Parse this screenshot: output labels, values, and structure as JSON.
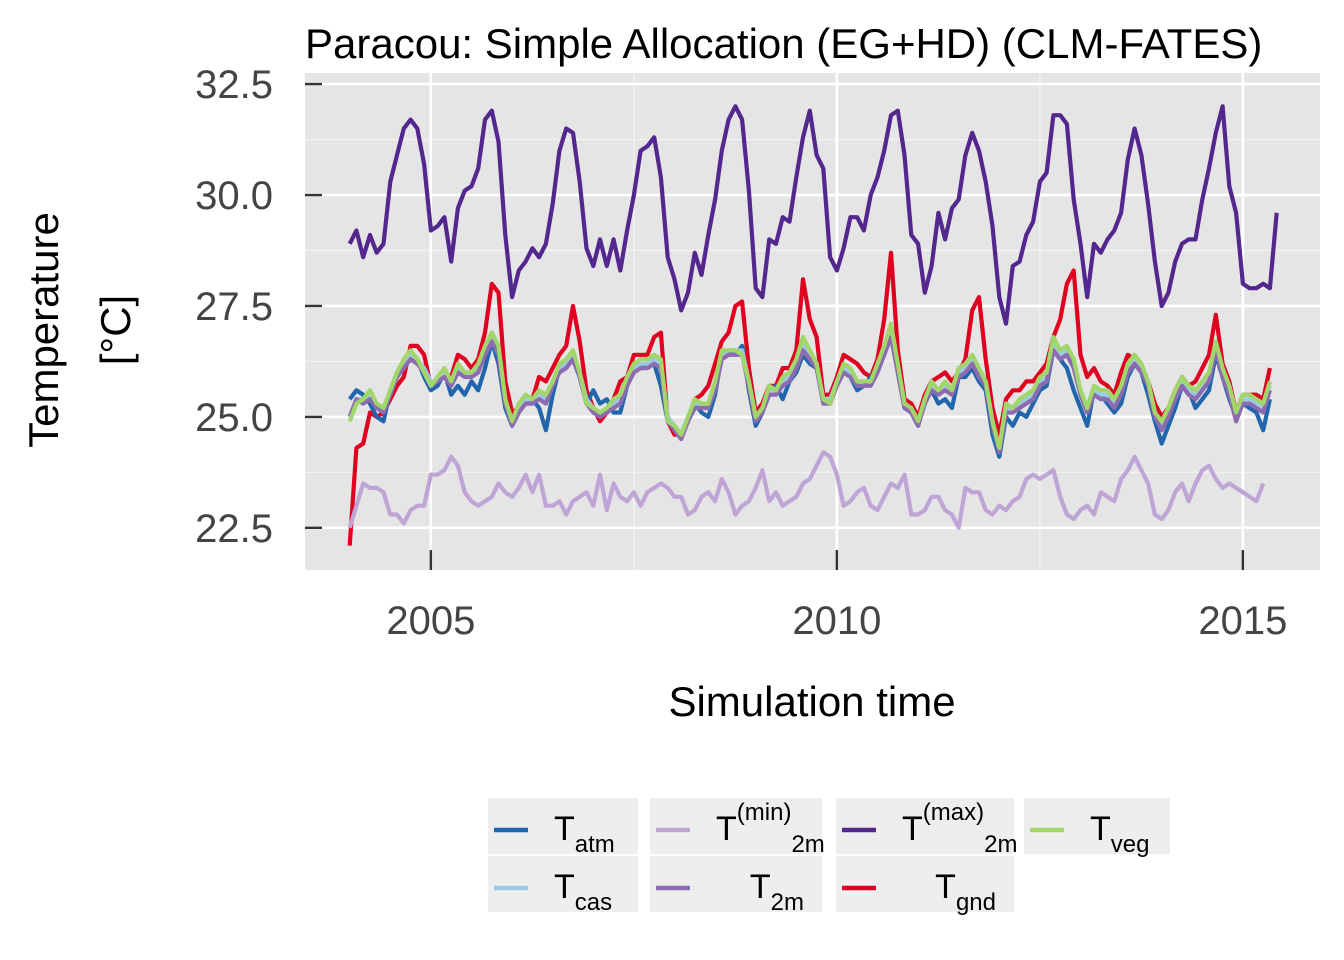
{
  "chart_data": {
    "type": "line",
    "title": "Paracou: Simple Allocation (EG+HD) (CLM-FATES)",
    "xlabel": "Simulation time",
    "ylabel_line1": "Temperature",
    "ylabel_line2": "[°C]",
    "xlim": [
      2003.45,
      2015.95
    ],
    "ylim": [
      21.55,
      32.75
    ],
    "x_ticks": [
      2005,
      2010,
      2015
    ],
    "x_tick_labels": [
      "2005",
      "2010",
      "2015"
    ],
    "y_ticks": [
      22.5,
      25.0,
      27.5,
      30.0,
      32.5
    ],
    "y_tick_labels": [
      "22.5",
      "25.0",
      "27.5",
      "30.0",
      "32.5"
    ],
    "grid": true,
    "legend_position": "bottom-center",
    "x_start": 2004.0,
    "x_step": 0.0833333,
    "series": [
      {
        "id": "t2m_max",
        "base": "T",
        "sub": "2m",
        "sup": "(max)",
        "color": "#54278f",
        "values": [
          28.9,
          29.2,
          28.6,
          29.1,
          28.7,
          28.9,
          30.3,
          30.9,
          31.5,
          31.7,
          31.5,
          30.7,
          29.2,
          29.3,
          29.5,
          28.5,
          29.7,
          30.1,
          30.2,
          30.6,
          31.7,
          31.9,
          31.2,
          29.1,
          27.7,
          28.3,
          28.5,
          28.8,
          28.6,
          28.9,
          29.8,
          31.0,
          31.5,
          31.4,
          30.3,
          28.8,
          28.4,
          29.0,
          28.4,
          29.0,
          28.3,
          29.2,
          30.0,
          31.0,
          31.1,
          31.3,
          30.4,
          28.6,
          28.1,
          27.4,
          27.8,
          28.7,
          28.2,
          29.1,
          29.9,
          31.0,
          31.7,
          32.0,
          31.7,
          30.1,
          27.9,
          27.7,
          29.0,
          28.9,
          29.5,
          29.4,
          30.4,
          31.3,
          31.9,
          30.9,
          30.6,
          28.6,
          28.3,
          28.8,
          29.5,
          29.5,
          29.2,
          30.0,
          30.4,
          31.0,
          31.8,
          31.9,
          30.9,
          29.1,
          28.9,
          27.8,
          28.4,
          29.6,
          29.0,
          29.7,
          29.9,
          30.9,
          31.4,
          31.0,
          30.3,
          29.3,
          27.7,
          27.1,
          28.4,
          28.5,
          29.1,
          29.4,
          30.3,
          30.5,
          31.8,
          31.8,
          31.6,
          29.9,
          28.9,
          27.7,
          28.9,
          28.7,
          29.0,
          29.2,
          29.6,
          30.8,
          31.5,
          30.9,
          29.8,
          28.5,
          27.5,
          27.8,
          28.5,
          28.9,
          29.0,
          29.0,
          29.9,
          30.6,
          31.4,
          32.0,
          30.2,
          29.6,
          28.0,
          27.9,
          27.9,
          28.0,
          27.9,
          29.6
        ]
      },
      {
        "id": "t_gnd",
        "base": "T",
        "sub": "gnd",
        "sup": "",
        "color": "#e0001f",
        "values": [
          22.1,
          24.3,
          24.4,
          25.1,
          25.0,
          25.1,
          25.4,
          25.7,
          25.9,
          26.6,
          26.6,
          26.4,
          25.7,
          25.8,
          26.0,
          25.9,
          26.4,
          26.3,
          26.1,
          26.3,
          26.9,
          28.0,
          27.8,
          25.8,
          25.1,
          25.2,
          25.4,
          25.4,
          25.9,
          25.8,
          26.1,
          26.4,
          26.6,
          27.5,
          26.7,
          25.6,
          25.2,
          24.9,
          25.1,
          25.4,
          25.8,
          25.9,
          26.4,
          26.4,
          26.4,
          26.8,
          26.9,
          24.9,
          24.6,
          24.6,
          24.9,
          25.4,
          25.5,
          25.7,
          26.2,
          26.7,
          26.9,
          27.5,
          27.6,
          26.1,
          25.1,
          25.3,
          25.7,
          25.7,
          26.1,
          26.1,
          26.5,
          28.1,
          27.2,
          26.8,
          25.5,
          25.5,
          25.9,
          26.4,
          26.3,
          26.2,
          26.0,
          25.9,
          26.3,
          27.2,
          28.7,
          26.5,
          25.4,
          25.3,
          25.0,
          25.5,
          25.8,
          25.9,
          26.0,
          25.8,
          26.0,
          26.3,
          27.4,
          27.7,
          26.3,
          25.2,
          24.6,
          25.4,
          25.6,
          25.6,
          25.8,
          25.8,
          26.0,
          26.2,
          26.8,
          27.2,
          28.0,
          28.3,
          26.4,
          25.9,
          26.1,
          25.8,
          25.7,
          25.5,
          26.0,
          26.4,
          26.3,
          26.1,
          25.8,
          25.3,
          25.0,
          25.2,
          25.6,
          25.9,
          25.7,
          25.8,
          26.1,
          26.4,
          27.3,
          26.2,
          25.8,
          25.1,
          25.5,
          25.5,
          25.5,
          25.4,
          26.1
        ]
      },
      {
        "id": "t_atm",
        "base": "T",
        "sub": "atm",
        "sup": "",
        "color": "#2166ac",
        "values": [
          25.4,
          25.6,
          25.5,
          25.3,
          25.0,
          24.9,
          25.6,
          26.0,
          26.2,
          26.4,
          26.3,
          25.9,
          25.6,
          25.7,
          26.0,
          25.5,
          25.7,
          25.5,
          25.8,
          25.6,
          26.1,
          26.7,
          26.2,
          25.2,
          24.8,
          25.1,
          25.4,
          25.4,
          25.2,
          24.7,
          25.5,
          26.1,
          26.2,
          26.3,
          25.9,
          25.3,
          25.6,
          25.3,
          25.4,
          25.1,
          25.1,
          25.7,
          26.1,
          26.1,
          26.2,
          26.2,
          25.7,
          24.9,
          24.8,
          24.6,
          25.0,
          25.3,
          25.1,
          25.0,
          25.5,
          26.4,
          26.5,
          26.4,
          26.6,
          25.6,
          24.8,
          25.1,
          25.6,
          25.7,
          25.4,
          25.8,
          26.0,
          26.4,
          26.2,
          26.1,
          25.4,
          25.3,
          25.8,
          26.1,
          25.9,
          25.6,
          25.7,
          25.9,
          26.1,
          26.4,
          26.9,
          26.0,
          25.2,
          25.1,
          24.8,
          25.4,
          25.6,
          25.3,
          25.4,
          25.2,
          25.9,
          25.9,
          26.1,
          25.8,
          25.6,
          24.6,
          24.1,
          25.0,
          24.8,
          25.1,
          25.0,
          25.3,
          25.6,
          25.7,
          26.5,
          26.3,
          26.1,
          25.6,
          25.2,
          24.8,
          25.6,
          25.5,
          25.3,
          25.1,
          25.3,
          25.9,
          26.2,
          26.0,
          25.5,
          24.9,
          24.4,
          24.8,
          25.2,
          25.7,
          25.6,
          25.2,
          25.4,
          25.6,
          26.4,
          25.9,
          25.4,
          25.0,
          25.3,
          25.2,
          25.1,
          24.7,
          25.4
        ]
      },
      {
        "id": "t_cas",
        "base": "T",
        "sub": "cas",
        "sup": "",
        "color": "#9ecae1",
        "values": [
          25.0,
          25.4,
          25.4,
          25.5,
          25.3,
          25.2,
          25.6,
          26.0,
          26.2,
          26.4,
          26.3,
          26.1,
          25.8,
          25.8,
          26.0,
          25.8,
          26.1,
          26.0,
          26.0,
          26.1,
          26.5,
          26.8,
          26.5,
          25.4,
          24.9,
          25.2,
          25.4,
          25.4,
          25.5,
          25.4,
          25.8,
          26.1,
          26.2,
          26.4,
          26.0,
          25.4,
          25.2,
          25.1,
          25.2,
          25.3,
          25.4,
          25.8,
          26.1,
          26.2,
          26.2,
          26.3,
          26.2,
          25.0,
          24.8,
          24.6,
          25.0,
          25.3,
          25.3,
          25.3,
          25.7,
          26.4,
          26.5,
          26.5,
          26.5,
          25.8,
          25.0,
          25.2,
          25.6,
          25.6,
          25.8,
          25.9,
          26.2,
          26.6,
          26.4,
          26.2,
          25.4,
          25.4,
          25.8,
          26.1,
          26.0,
          25.8,
          25.8,
          25.8,
          26.1,
          26.5,
          26.9,
          26.1,
          25.3,
          25.2,
          24.9,
          25.4,
          25.7,
          25.6,
          25.7,
          25.6,
          26.0,
          26.1,
          26.3,
          26.0,
          25.8,
          24.9,
          24.3,
          25.2,
          25.2,
          25.3,
          25.4,
          25.5,
          25.8,
          25.9,
          26.6,
          26.4,
          26.5,
          26.2,
          25.6,
          25.2,
          25.6,
          25.5,
          25.5,
          25.3,
          25.6,
          26.1,
          26.3,
          26.1,
          25.8,
          25.1,
          24.8,
          25.1,
          25.5,
          25.8,
          25.6,
          25.5,
          25.7,
          25.9,
          26.6,
          26.0,
          25.6,
          25.0,
          25.4,
          25.4,
          25.3,
          25.2,
          25.7
        ]
      },
      {
        "id": "t2m",
        "base": "T",
        "sub": "2m",
        "sup": "",
        "color": "#8c6bb1",
        "values": [
          25.0,
          25.4,
          25.3,
          25.4,
          25.2,
          25.1,
          25.5,
          25.9,
          26.1,
          26.3,
          26.2,
          26.0,
          25.7,
          25.8,
          25.9,
          25.7,
          26.0,
          25.9,
          25.9,
          26.0,
          26.4,
          26.7,
          26.4,
          25.3,
          24.8,
          25.1,
          25.3,
          25.3,
          25.4,
          25.3,
          25.7,
          26.0,
          26.1,
          26.3,
          25.9,
          25.3,
          25.1,
          25.0,
          25.1,
          25.2,
          25.3,
          25.7,
          26.0,
          26.1,
          26.1,
          26.2,
          26.1,
          24.9,
          24.7,
          24.5,
          24.9,
          25.2,
          25.2,
          25.2,
          25.6,
          26.3,
          26.4,
          26.4,
          26.4,
          25.7,
          24.9,
          25.1,
          25.5,
          25.5,
          25.7,
          25.8,
          26.1,
          26.5,
          26.3,
          26.1,
          25.3,
          25.3,
          25.7,
          26.0,
          25.9,
          25.7,
          25.7,
          25.7,
          26.0,
          26.4,
          26.8,
          26.0,
          25.2,
          25.1,
          24.8,
          25.3,
          25.6,
          25.5,
          25.6,
          25.5,
          25.9,
          26.0,
          26.2,
          25.9,
          25.7,
          24.8,
          24.2,
          25.1,
          25.1,
          25.2,
          25.3,
          25.4,
          25.7,
          25.8,
          26.5,
          26.3,
          26.4,
          26.1,
          25.5,
          25.1,
          25.5,
          25.4,
          25.4,
          25.2,
          25.5,
          26.0,
          26.2,
          26.0,
          25.7,
          25.0,
          24.7,
          25.0,
          25.4,
          25.7,
          25.5,
          25.4,
          25.6,
          25.8,
          26.5,
          25.9,
          25.5,
          24.9,
          25.3,
          25.3,
          25.2,
          25.1,
          25.6
        ]
      },
      {
        "id": "t_veg",
        "base": "T",
        "sub": "veg",
        "sup": "",
        "color": "#a1d76a",
        "values": [
          24.9,
          25.3,
          25.4,
          25.6,
          25.3,
          25.2,
          25.6,
          26.0,
          26.3,
          26.5,
          26.3,
          26.0,
          25.7,
          25.9,
          26.1,
          25.8,
          26.2,
          26.0,
          26.0,
          26.2,
          26.6,
          26.9,
          26.6,
          25.4,
          24.9,
          25.3,
          25.5,
          25.4,
          25.6,
          25.5,
          25.8,
          26.2,
          26.3,
          26.5,
          26.0,
          25.3,
          25.2,
          25.1,
          25.2,
          25.4,
          25.5,
          25.9,
          26.2,
          26.3,
          26.3,
          26.4,
          26.3,
          24.9,
          24.8,
          24.6,
          25.0,
          25.4,
          25.3,
          25.3,
          25.8,
          26.5,
          26.5,
          26.5,
          26.4,
          25.8,
          25.0,
          25.2,
          25.7,
          25.6,
          25.9,
          26.0,
          26.3,
          26.8,
          26.5,
          26.2,
          25.4,
          25.3,
          25.8,
          26.2,
          26.1,
          25.8,
          25.8,
          25.8,
          26.2,
          26.6,
          27.1,
          26.2,
          25.3,
          25.2,
          24.9,
          25.4,
          25.8,
          25.6,
          25.8,
          25.6,
          26.1,
          26.2,
          26.4,
          26.1,
          25.8,
          24.9,
          24.3,
          25.3,
          25.2,
          25.4,
          25.5,
          25.6,
          25.9,
          26.0,
          26.8,
          26.5,
          26.6,
          26.3,
          25.6,
          25.2,
          25.7,
          25.6,
          25.6,
          25.4,
          25.7,
          26.2,
          26.4,
          26.2,
          25.8,
          25.1,
          24.9,
          25.2,
          25.6,
          25.9,
          25.7,
          25.6,
          25.8,
          26.0,
          26.7,
          26.1,
          25.7,
          25.1,
          25.5,
          25.5,
          25.4,
          25.3,
          25.8
        ]
      },
      {
        "id": "t2m_min",
        "base": "T",
        "sub": "2m",
        "sup": "(min)",
        "color": "#bfa5d6",
        "values": [
          22.5,
          23.0,
          23.5,
          23.4,
          23.4,
          23.3,
          22.8,
          22.8,
          22.6,
          22.9,
          23.0,
          23.0,
          23.7,
          23.7,
          23.8,
          24.1,
          23.9,
          23.3,
          23.1,
          23.0,
          23.1,
          23.2,
          23.5,
          23.3,
          23.2,
          23.4,
          23.7,
          23.3,
          23.7,
          23.0,
          23.0,
          23.1,
          22.8,
          23.1,
          23.2,
          23.3,
          23.0,
          23.7,
          22.9,
          23.5,
          23.2,
          23.1,
          23.3,
          23.0,
          23.3,
          23.4,
          23.5,
          23.4,
          23.2,
          23.2,
          22.8,
          22.9,
          23.2,
          23.3,
          23.1,
          23.6,
          23.3,
          22.8,
          23.0,
          23.1,
          23.4,
          23.8,
          23.1,
          23.3,
          23.0,
          23.1,
          23.2,
          23.5,
          23.6,
          23.9,
          24.2,
          24.1,
          23.7,
          23.0,
          23.1,
          23.3,
          23.4,
          23.0,
          22.9,
          23.2,
          23.5,
          23.4,
          23.7,
          22.8,
          22.8,
          22.9,
          23.2,
          23.2,
          22.9,
          22.8,
          22.5,
          23.4,
          23.3,
          23.3,
          22.9,
          22.8,
          23.0,
          22.9,
          23.1,
          23.2,
          23.6,
          23.7,
          23.6,
          23.7,
          23.8,
          23.2,
          22.8,
          22.7,
          22.9,
          23.0,
          22.8,
          23.3,
          23.2,
          23.1,
          23.6,
          23.8,
          24.1,
          23.8,
          23.5,
          22.8,
          22.7,
          22.9,
          23.3,
          23.5,
          23.1,
          23.5,
          23.8,
          23.9,
          23.6,
          23.4,
          23.5,
          23.4,
          23.3,
          23.2,
          23.1,
          23.5
        ]
      }
    ],
    "legend": [
      {
        "id": "t_atm",
        "base": "T",
        "sub": "atm",
        "sup": "",
        "color": "#2166ac"
      },
      {
        "id": "t_cas",
        "base": "T",
        "sub": "cas",
        "sup": "",
        "color": "#9ecae1"
      },
      {
        "id": "t2m_min",
        "base": "T",
        "sub": "2m",
        "sup": "(min)",
        "color": "#bfa5d6"
      },
      {
        "id": "t2m",
        "base": "T",
        "sub": "2m",
        "sup": "",
        "color": "#8c6bb1"
      },
      {
        "id": "t2m_max",
        "base": "T",
        "sub": "2m",
        "sup": "(max)",
        "color": "#54278f"
      },
      {
        "id": "t_gnd",
        "base": "T",
        "sub": "gnd",
        "sup": "",
        "color": "#e0001f"
      },
      {
        "id": "t_veg",
        "base": "T",
        "sub": "veg",
        "sup": "",
        "color": "#a1d76a"
      }
    ]
  }
}
